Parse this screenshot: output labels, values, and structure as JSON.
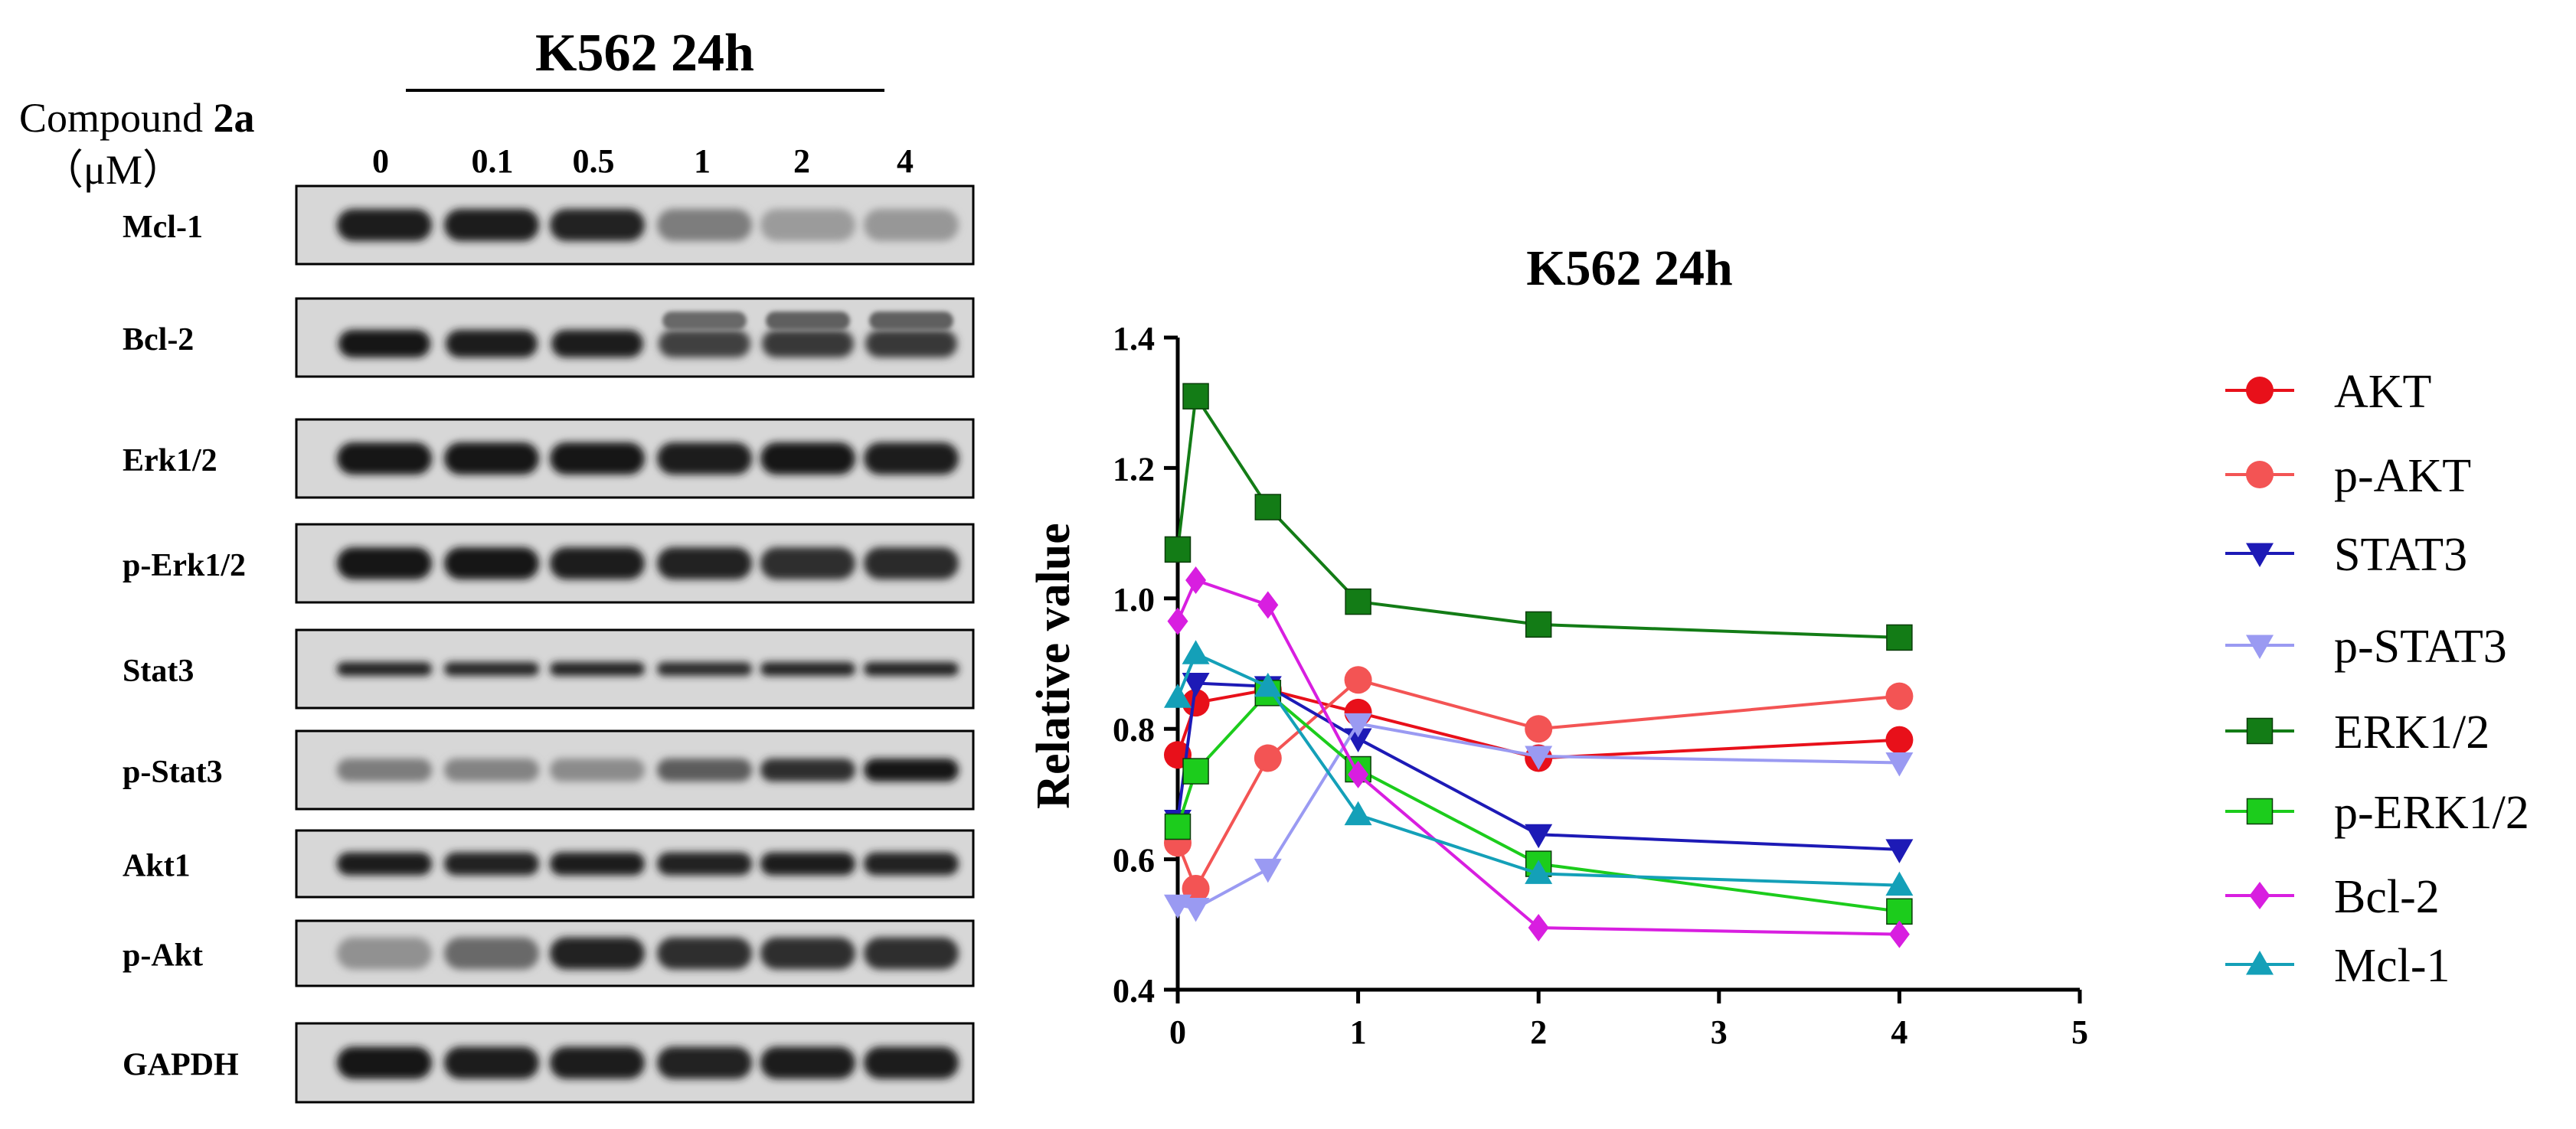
{
  "blot": {
    "header": "K562 24h",
    "compound_label_prefix": "Compound ",
    "compound_label_bold": "2a",
    "unit_label": "（μM）",
    "concentrations": [
      "0",
      "0.1",
      "0.5",
      "1",
      "2",
      "4"
    ],
    "rows": [
      {
        "label": "Mcl-1",
        "intensity": [
          0.92,
          0.92,
          0.9,
          0.45,
          0.3,
          0.32
        ],
        "thickness": "thick"
      },
      {
        "label": "Bcl-2",
        "intensity": [
          0.95,
          0.93,
          0.93,
          0.75,
          0.8,
          0.8
        ],
        "thickness": "double"
      },
      {
        "label": "Erk1/2",
        "intensity": [
          0.97,
          0.95,
          0.95,
          0.93,
          0.95,
          0.93
        ],
        "thickness": "thick"
      },
      {
        "label": "p-Erk1/2",
        "intensity": [
          0.95,
          0.97,
          0.93,
          0.9,
          0.85,
          0.87
        ],
        "thickness": "thick"
      },
      {
        "label": "Stat3",
        "intensity": [
          0.9,
          0.88,
          0.9,
          0.87,
          0.9,
          0.9
        ],
        "thickness": "thin"
      },
      {
        "label": "p-Stat3",
        "intensity": [
          0.45,
          0.42,
          0.38,
          0.62,
          0.85,
          0.95
        ],
        "thickness": "medium"
      },
      {
        "label": "Akt1",
        "intensity": [
          0.93,
          0.9,
          0.92,
          0.9,
          0.92,
          0.9
        ],
        "thickness": "medium"
      },
      {
        "label": "p-Akt",
        "intensity": [
          0.35,
          0.55,
          0.9,
          0.85,
          0.85,
          0.85
        ],
        "thickness": "thick"
      },
      {
        "label": "GAPDH",
        "intensity": [
          0.95,
          0.93,
          0.93,
          0.9,
          0.93,
          0.92
        ],
        "thickness": "thick"
      }
    ]
  },
  "chart_data": {
    "type": "line",
    "title": "K562 24h",
    "xlabel": "",
    "ylabel": "Relative value",
    "xlim": [
      0,
      5
    ],
    "ylim": [
      0.4,
      1.4
    ],
    "xticks": [
      "0",
      "1",
      "2",
      "3",
      "4",
      "5"
    ],
    "yticks": [
      "0.4",
      "0.6",
      "0.8",
      "1.0",
      "1.2",
      "1.4"
    ],
    "x": [
      0,
      0.1,
      0.5,
      1,
      2,
      4
    ],
    "legend_position": "right",
    "series": [
      {
        "name": "AKT",
        "color": "#e8101a",
        "marker": "circle",
        "values": [
          0.76,
          0.84,
          0.86,
          0.825,
          0.755,
          0.783
        ]
      },
      {
        "name": "p-AKT",
        "color": "#f35454",
        "marker": "circle",
        "values": [
          0.625,
          0.555,
          0.755,
          0.875,
          0.8,
          0.85
        ]
      },
      {
        "name": "STAT3",
        "color": "#1d1ab6",
        "marker": "tri-down",
        "values": [
          0.66,
          0.87,
          0.865,
          0.785,
          0.638,
          0.615
        ]
      },
      {
        "name": "p-STAT3",
        "color": "#9a9af2",
        "marker": "tri-down",
        "values": [
          0.53,
          0.525,
          0.585,
          0.808,
          0.758,
          0.748
        ]
      },
      {
        "name": "ERK1/2",
        "color": "#137c16",
        "marker": "square",
        "values": [
          1.075,
          1.31,
          1.14,
          0.995,
          0.96,
          0.94
        ]
      },
      {
        "name": "p-ERK1/2",
        "color": "#1ccc1c",
        "marker": "square",
        "values": [
          0.65,
          0.735,
          0.855,
          0.738,
          0.593,
          0.52
        ]
      },
      {
        "name": "Bcl-2",
        "color": "#d81ee0",
        "marker": "diamond",
        "values": [
          0.965,
          1.028,
          0.99,
          0.73,
          0.495,
          0.485
        ]
      },
      {
        "name": "Mcl-1",
        "color": "#14a0b8",
        "marker": "tri-up",
        "values": [
          0.848,
          0.915,
          0.865,
          0.668,
          0.578,
          0.56
        ]
      }
    ]
  }
}
